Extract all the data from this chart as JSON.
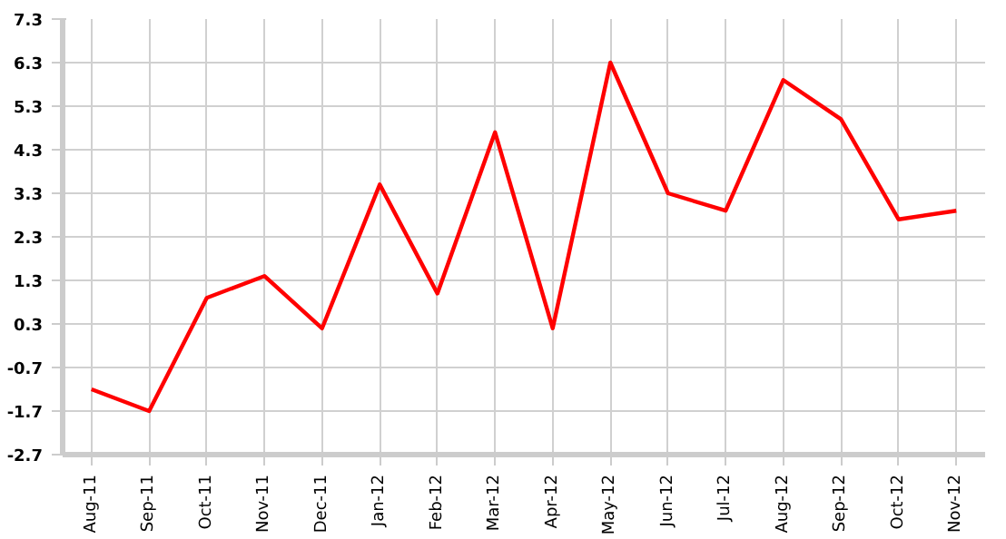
{
  "chart_data": {
    "type": "line",
    "categories": [
      "Aug-11",
      "Sep-11",
      "Oct-11",
      "Nov-11",
      "Dec-11",
      "Jan-12",
      "Feb-12",
      "Mar-12",
      "Apr-12",
      "May-12",
      "Jun-12",
      "Jul-12",
      "Aug-12",
      "Sep-12",
      "Oct-12",
      "Nov-12"
    ],
    "series": [
      {
        "color": "#ff0000",
        "values": [
          -1.2,
          -1.7,
          0.9,
          1.4,
          0.2,
          3.5,
          1.0,
          4.7,
          0.2,
          6.3,
          3.3,
          2.9,
          5.9,
          5.0,
          2.7,
          2.9
        ]
      }
    ],
    "ylim": [
      -2.7,
      7.3
    ],
    "yticks": [
      -2.7,
      -1.7,
      -0.7,
      0.3,
      1.3,
      2.3,
      3.3,
      4.3,
      5.3,
      6.3,
      7.3
    ],
    "grid": true,
    "marker": "none",
    "line_style": "solid"
  }
}
